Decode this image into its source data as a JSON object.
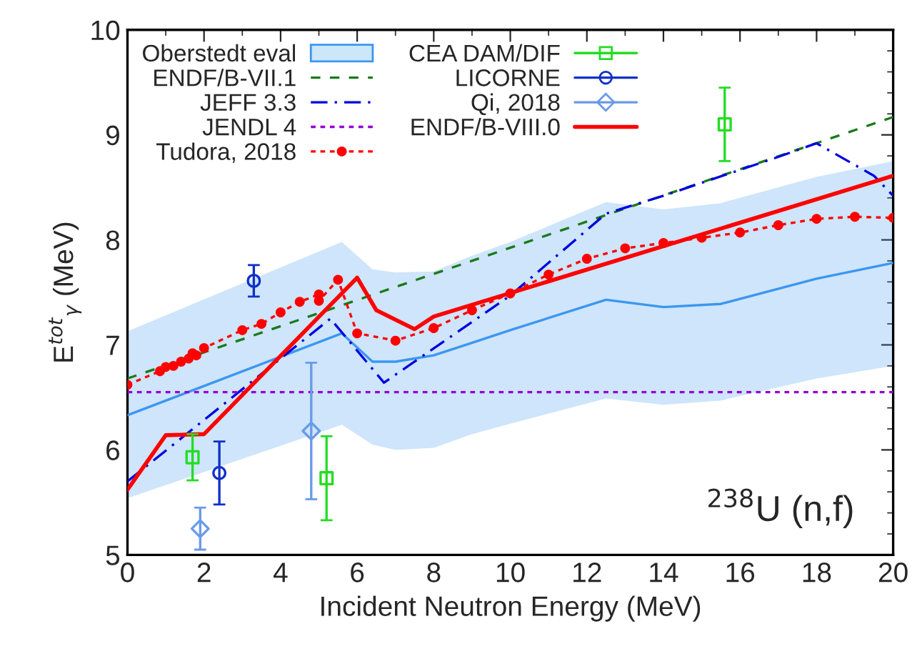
{
  "chart_data": {
    "type": "line",
    "xlabel": "Incident Neutron Energy (MeV)",
    "ylabel": "E$^{tot}$$_{γ}$ (MeV)",
    "xlim": [
      0,
      20
    ],
    "ylim": [
      5,
      10
    ],
    "xticks": [
      0,
      2,
      4,
      6,
      8,
      10,
      12,
      14,
      16,
      18,
      20
    ],
    "yticks": [
      5,
      6,
      7,
      8,
      9,
      10
    ],
    "grid": false,
    "legend": "top left",
    "annotations": [
      "$^{238}$U (n,f)"
    ],
    "series": [
      {
        "name": "Oberstedt eval",
        "type": "line",
        "color": "#3c96f0",
        "line_style": "solid",
        "marker": "none",
        "x": [
          0,
          5.6,
          6.4,
          7,
          8,
          9,
          10,
          12.5,
          14,
          15.5,
          18,
          20
        ],
        "values": [
          6.33,
          7.11,
          6.84,
          6.84,
          6.9,
          7.02,
          7.14,
          7.43,
          7.36,
          7.39,
          7.63,
          7.78
        ],
        "lower": [
          5.54,
          6.24,
          6.05,
          6.0,
          6.02,
          6.15,
          6.25,
          6.49,
          6.43,
          6.47,
          6.68,
          6.8
        ],
        "upper": [
          7.13,
          7.98,
          7.72,
          7.69,
          7.7,
          7.85,
          7.98,
          8.36,
          8.29,
          8.35,
          8.6,
          8.75
        ]
      },
      {
        "name": "ENDF/B-VII.1",
        "type": "line",
        "color": "#1a7a1a",
        "line_style": "dashed",
        "marker": "none",
        "x": [
          0,
          20
        ],
        "values": [
          6.68,
          9.17
        ]
      },
      {
        "name": "JEFF 3.3",
        "type": "line",
        "color": "#0000e0",
        "line_style": "dashdot",
        "marker": "none",
        "x": [
          0,
          5.3,
          6.7,
          10,
          12.5,
          14,
          17,
          18,
          19.5,
          20
        ],
        "values": [
          5.7,
          7.25,
          6.64,
          7.47,
          8.25,
          8.42,
          8.79,
          8.92,
          8.61,
          8.42
        ]
      },
      {
        "name": "JENDL 4",
        "type": "line",
        "color": "#9400d3",
        "line_style": "dotted",
        "marker": "none",
        "x": [
          0,
          20
        ],
        "values": [
          6.55,
          6.55
        ]
      },
      {
        "name": "Tudora, 2018",
        "type": "line",
        "color": "#ff0000",
        "line_style": "dotted",
        "marker": "circle",
        "x": [
          0,
          0.85,
          1,
          1.2,
          1.4,
          1.6,
          1.7,
          1.8,
          2,
          3,
          3.5,
          4,
          4.5,
          5,
          5,
          5.5,
          6,
          7,
          8,
          9,
          10,
          11,
          12,
          13,
          14,
          15,
          16,
          17,
          18,
          19,
          20
        ],
        "values": [
          6.62,
          6.75,
          6.79,
          6.8,
          6.84,
          6.87,
          6.92,
          6.9,
          6.97,
          7.14,
          7.2,
          7.31,
          7.41,
          7.48,
          7.42,
          7.62,
          7.11,
          7.04,
          7.16,
          7.33,
          7.49,
          7.67,
          7.82,
          7.92,
          7.97,
          8.02,
          8.07,
          8.14,
          8.2,
          8.22,
          8.21
        ]
      },
      {
        "name": "CEA DAM/DIF",
        "type": "scatter",
        "color": "#22dd22",
        "marker": "square",
        "x": [
          1.7,
          5.2,
          15.6
        ],
        "values": [
          5.93,
          5.73,
          9.1
        ],
        "errors": [
          0.22,
          0.4,
          0.35
        ]
      },
      {
        "name": "LICORNE",
        "type": "scatter",
        "color": "#1030c8",
        "marker": "circle",
        "x": [
          3.3,
          2.4
        ],
        "values": [
          7.61,
          5.78
        ],
        "errors": [
          0.15,
          0.3
        ]
      },
      {
        "name": "Qi, 2018",
        "type": "scatter",
        "color": "#6a9ae8",
        "marker": "diamond",
        "x": [
          4.8,
          1.9
        ],
        "values": [
          6.18,
          5.25
        ],
        "errors": [
          0.65,
          0.2
        ]
      },
      {
        "name": "ENDF/B-VIII.0",
        "type": "line",
        "color": "#ff0000",
        "line_style": "solid",
        "marker": "none",
        "x": [
          0,
          1,
          2,
          6,
          6.5,
          7.5,
          8,
          20
        ],
        "values": [
          5.62,
          6.14,
          6.15,
          7.64,
          7.33,
          7.15,
          7.27,
          8.61
        ]
      }
    ]
  }
}
